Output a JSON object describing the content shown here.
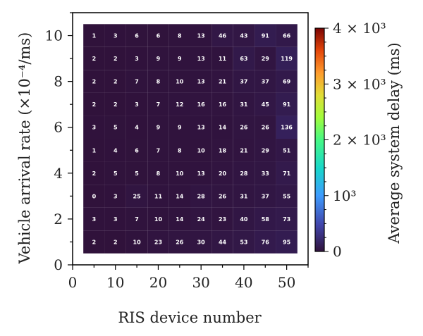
{
  "chart_data": {
    "type": "heatmap",
    "xlabel": "RIS device number",
    "ylabel": "Vehicle arrival rate (×10⁻⁴/ms)",
    "x": [
      5,
      10,
      15,
      20,
      25,
      30,
      35,
      40,
      45,
      50
    ],
    "y": [
      1,
      2,
      3,
      4,
      5,
      6,
      7,
      8,
      9,
      10
    ],
    "values": [
      [
        2,
        2,
        10,
        23,
        26,
        30,
        44,
        53,
        76,
        95
      ],
      [
        3,
        3,
        7,
        10,
        14,
        24,
        23,
        40,
        58,
        73
      ],
      [
        0,
        3,
        25,
        11,
        14,
        28,
        26,
        31,
        37,
        55
      ],
      [
        2,
        5,
        5,
        8,
        10,
        13,
        20,
        28,
        33,
        71
      ],
      [
        1,
        4,
        6,
        7,
        8,
        10,
        18,
        21,
        29,
        51
      ],
      [
        3,
        5,
        4,
        9,
        9,
        13,
        14,
        26,
        26,
        136
      ],
      [
        2,
        2,
        3,
        7,
        12,
        16,
        16,
        31,
        45,
        91
      ],
      [
        2,
        2,
        7,
        8,
        10,
        13,
        21,
        37,
        37,
        69
      ],
      [
        2,
        2,
        3,
        9,
        9,
        13,
        11,
        63,
        29,
        119
      ],
      [
        1,
        3,
        6,
        6,
        8,
        13,
        46,
        43,
        91,
        66
      ]
    ],
    "xlim": [
      0,
      55
    ],
    "ylim": [
      0,
      11
    ],
    "xticks": [
      0,
      10,
      20,
      30,
      40,
      50
    ],
    "yticks": [
      0,
      2,
      4,
      6,
      8,
      10
    ],
    "colorbar": {
      "label": "Average system delay (ms)",
      "range": [
        0,
        4000
      ],
      "ticks": [
        {
          "value": 0,
          "label": "0"
        },
        {
          "value": 1000,
          "label": "10³"
        },
        {
          "value": 2000,
          "label": "2 × 10³"
        },
        {
          "value": 3000,
          "label": "3 × 10³"
        },
        {
          "value": 4000,
          "label": "4 × 10³"
        }
      ]
    },
    "grid": false
  }
}
